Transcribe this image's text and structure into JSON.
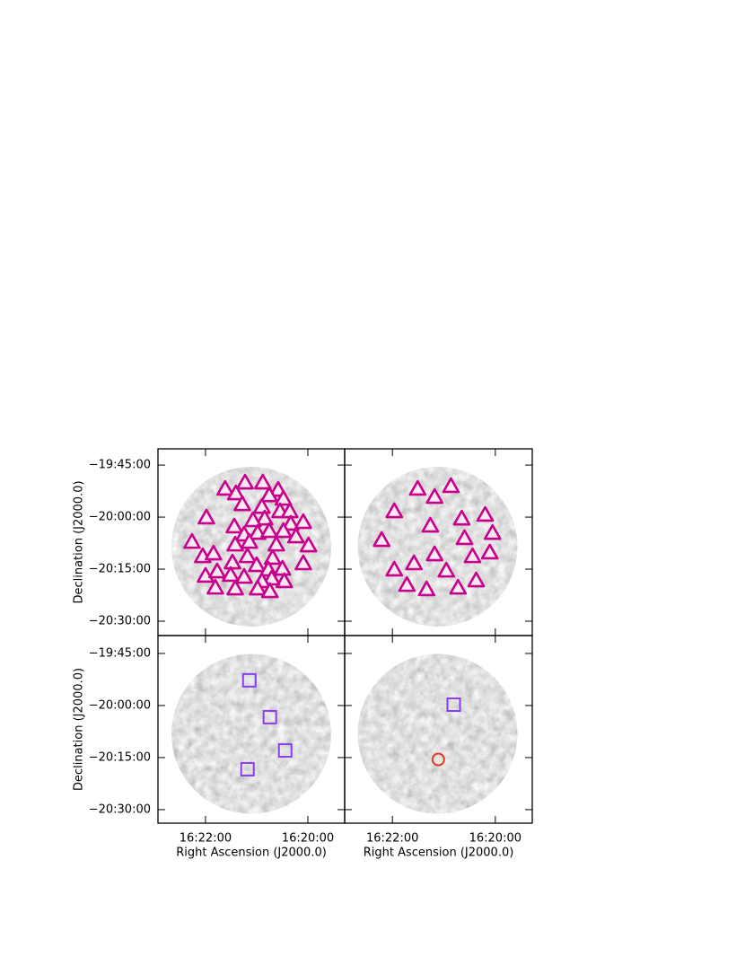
{
  "chart_data": [
    {
      "type": "scatter",
      "ylabel": "Declination (J2000.0)",
      "xlim": [
        16.3822,
        16.3213
      ],
      "ylim": [
        -20.569,
        -19.672
      ],
      "yticks": [
        {
          "value": -19.75,
          "label": "−19:45:00"
        },
        {
          "value": -20.0,
          "label": "−20:00:00"
        },
        {
          "value": -20.25,
          "label": "−20:15:00"
        },
        {
          "value": -20.5,
          "label": "−20:30:00"
        }
      ],
      "series": [
        {
          "marker": "triangle",
          "color": "#c8008c",
          "x": [
            16.3603,
            16.3568,
            16.3538,
            16.348,
            16.343,
            16.3459,
            16.3547,
            16.3413,
            16.3664,
            16.3424,
            16.3392,
            16.3483,
            16.3474,
            16.3512,
            16.3573,
            16.3541,
            16.3497,
            16.3459,
            16.3389,
            16.3348,
            16.3413,
            16.3711,
            16.3676,
            16.3641,
            16.357,
            16.3524,
            16.3436,
            16.3331,
            16.3372,
            16.3448,
            16.353,
            16.3579,
            16.3667,
            16.3629,
            16.3585,
            16.3541,
            16.35,
            16.3462,
            16.3416,
            16.3348,
            16.341,
            16.3451,
            16.3483,
            16.3635,
            16.357,
            16.3497,
            16.3457
          ],
          "values": [
            -19.866,
            -19.888,
            -19.836,
            -19.836,
            -19.871,
            -19.897,
            -19.94,
            -19.914,
            -20.004,
            -19.974,
            -19.974,
            -19.953,
            -20.009,
            -20.017,
            -20.047,
            -20.086,
            -20.078,
            -20.069,
            -20.034,
            -20.026,
            -20.069,
            -20.121,
            -20.19,
            -20.177,
            -20.134,
            -20.121,
            -20.134,
            -20.138,
            -20.095,
            -20.198,
            -20.19,
            -20.22,
            -20.284,
            -20.263,
            -20.28,
            -20.289,
            -20.233,
            -20.254,
            -20.25,
            -20.224,
            -20.31,
            -20.297,
            -20.31,
            -20.341,
            -20.345,
            -20.345,
            -20.358
          ]
        }
      ]
    },
    {
      "type": "scatter",
      "xlim": [
        16.3822,
        16.3213
      ],
      "ylim": [
        -20.569,
        -19.672
      ],
      "series": [
        {
          "marker": "triangle",
          "color": "#c8008c",
          "x": [
            16.3585,
            16.353,
            16.3477,
            16.3661,
            16.3544,
            16.3442,
            16.3366,
            16.3342,
            16.3702,
            16.3433,
            16.3351,
            16.353,
            16.3407,
            16.3597,
            16.3661,
            16.3492,
            16.3395,
            16.362,
            16.3556,
            16.3454
          ],
          "values": [
            -19.866,
            -19.905,
            -19.853,
            -19.974,
            -20.043,
            -20.009,
            -19.991,
            -20.078,
            -20.112,
            -20.103,
            -20.172,
            -20.181,
            -20.19,
            -20.224,
            -20.254,
            -20.259,
            -20.306,
            -20.328,
            -20.349,
            -20.341
          ]
        }
      ]
    },
    {
      "type": "scatter",
      "ylabel": "Declination (J2000.0)",
      "xlabel": "Right Ascension (J2000.0)",
      "xlim": [
        16.3822,
        16.3213
      ],
      "ylim": [
        -20.565,
        -19.664
      ],
      "xticks": [
        {
          "value": 16.3667,
          "label": "16:22:00"
        },
        {
          "value": 16.3333,
          "label": "16:20:00"
        }
      ],
      "yticks": [
        {
          "value": -19.75,
          "label": "−19:45:00"
        },
        {
          "value": -20.0,
          "label": "−20:00:00"
        },
        {
          "value": -20.25,
          "label": "−20:15:00"
        },
        {
          "value": -20.5,
          "label": "−20:30:00"
        }
      ],
      "series": [
        {
          "marker": "square",
          "color": "#8a3cf0",
          "x": [
            16.3524,
            16.3457,
            16.3407,
            16.353
          ],
          "values": [
            -19.879,
            -20.056,
            -20.216,
            -20.306
          ]
        }
      ]
    },
    {
      "type": "scatter",
      "xlabel": "Right Ascension (J2000.0)",
      "xlim": [
        16.3822,
        16.3213
      ],
      "ylim": [
        -20.565,
        -19.664
      ],
      "xticks": [
        {
          "value": 16.3667,
          "label": "16:22:00"
        },
        {
          "value": 16.3333,
          "label": "16:20:00"
        }
      ],
      "series": [
        {
          "marker": "square",
          "color": "#8a3cf0",
          "x": [
            16.3468
          ],
          "values": [
            -19.996
          ]
        },
        {
          "marker": "circle",
          "color": "#e03a1e",
          "x": [
            16.3518
          ],
          "values": [
            -20.259
          ]
        }
      ]
    }
  ]
}
